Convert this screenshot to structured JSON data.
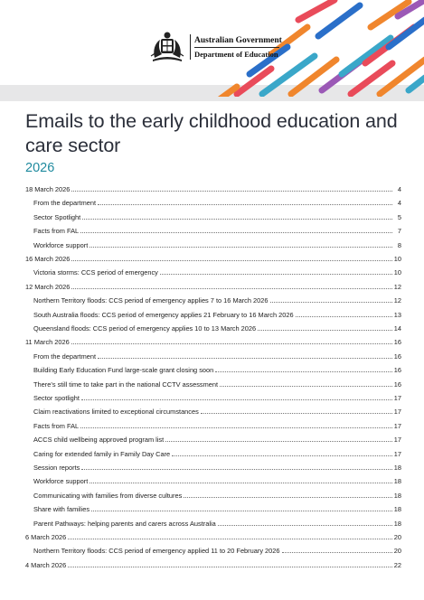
{
  "header": {
    "logo_line1": "Australian Government",
    "logo_line2": "Department of Education",
    "stripe_colors": [
      "#e94b5a",
      "#f0862d",
      "#3aa7c9",
      "#2a6fc9",
      "#9b59b6"
    ]
  },
  "title": "Emails to the early childhood education and care sector",
  "year": "2026",
  "toc": [
    {
      "text": "18 March 2026",
      "page": "4",
      "level": 0
    },
    {
      "text": "From the department",
      "page": "4",
      "level": 1
    },
    {
      "text": "Sector Spotlight",
      "page": "5",
      "level": 1
    },
    {
      "text": "Facts from FAL",
      "page": "7",
      "level": 1
    },
    {
      "text": "Workforce support",
      "page": "8",
      "level": 1
    },
    {
      "text": "16 March 2026",
      "page": "10",
      "level": 0
    },
    {
      "text": "Victoria storms: CCS period of emergency",
      "page": "10",
      "level": 1
    },
    {
      "text": "12 March 2026",
      "page": "12",
      "level": 0
    },
    {
      "text": "Northern Territory floods: CCS period of emergency applies 7 to 16 March 2026",
      "page": "12",
      "level": 1
    },
    {
      "text": "South Australia floods: CCS period of emergency applies 21 February to 16 March 2026",
      "page": "13",
      "level": 1
    },
    {
      "text": "Queensland floods: CCS period of emergency applies 10 to 13 March 2026",
      "page": "14",
      "level": 1
    },
    {
      "text": "11 March 2026",
      "page": "16",
      "level": 0
    },
    {
      "text": "From the department",
      "page": "16",
      "level": 1
    },
    {
      "text": "Building Early Education Fund large-scale grant closing soon",
      "page": "16",
      "level": 1
    },
    {
      "text": "There’s still time to take part in the national CCTV assessment",
      "page": "16",
      "level": 1
    },
    {
      "text": "Sector spotlight",
      "page": "17",
      "level": 1
    },
    {
      "text": "Claim reactivations limited to exceptional circumstances",
      "page": "17",
      "level": 1
    },
    {
      "text": "Facts from FAL",
      "page": "17",
      "level": 1
    },
    {
      "text": "ACCS child wellbeing approved program list",
      "page": "17",
      "level": 1
    },
    {
      "text": "Caring for extended family in Family Day Care",
      "page": "17",
      "level": 1
    },
    {
      "text": "Session reports",
      "page": "18",
      "level": 1
    },
    {
      "text": "Workforce support",
      "page": "18",
      "level": 1
    },
    {
      "text": "Communicating with families from diverse cultures",
      "page": "18",
      "level": 1
    },
    {
      "text": "Share with families",
      "page": "18",
      "level": 1
    },
    {
      "text": "Parent Pathways: helping parents and carers across Australia",
      "page": "18",
      "level": 1
    },
    {
      "text": "6 March 2026",
      "page": "20",
      "level": 0
    },
    {
      "text": "Northern Territory floods: CCS period of emergency applied 11 to 20 February 2026",
      "page": "20",
      "level": 1
    },
    {
      "text": "4 March 2026",
      "page": "22",
      "level": 0
    }
  ]
}
